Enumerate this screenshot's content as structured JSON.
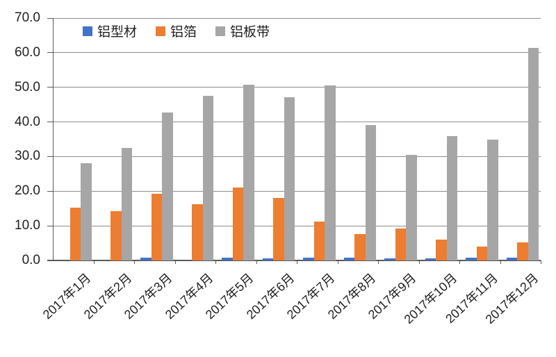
{
  "chart_data": {
    "type": "bar",
    "title": "",
    "categories": [
      "2017年1月",
      "2017年2月",
      "2017年3月",
      "2017年4月",
      "2017年5月",
      "2017年6月",
      "2017年7月",
      "2017年8月",
      "2017年9月",
      "2017年10月",
      "2017年11月",
      "2017年12月"
    ],
    "series": [
      {
        "name": "铝型材",
        "color": "#4472C4",
        "values": [
          0.0,
          0.0,
          0.9,
          0.0,
          0.9,
          0.7,
          0.9,
          0.9,
          0.6,
          0.6,
          0.8,
          0.9
        ]
      },
      {
        "name": "铝箔",
        "color": "#ED7D31",
        "values": [
          15.3,
          14.3,
          19.2,
          16.2,
          21.0,
          18.0,
          11.2,
          7.6,
          9.3,
          6.1,
          4.0,
          5.2
        ]
      },
      {
        "name": "铝板带",
        "color": "#A6A6A6",
        "values": [
          28.0,
          32.5,
          42.8,
          47.5,
          50.7,
          47.2,
          50.5,
          39.2,
          30.4,
          36.0,
          34.8,
          61.3
        ]
      }
    ],
    "xlabel": "",
    "ylabel": "",
    "ylim": [
      0,
      70
    ],
    "ytick_step": 10,
    "ytick_labels": [
      "0.0",
      "10.0",
      "20.0",
      "30.0",
      "40.0",
      "50.0",
      "60.0",
      "70.0"
    ],
    "grid": true,
    "legend_position": "top-inside",
    "style": {
      "gridline_color": "#8c8c8c",
      "axis_color": "#595959",
      "text_color": "#1f1f1f",
      "background": "#ffffff"
    }
  }
}
